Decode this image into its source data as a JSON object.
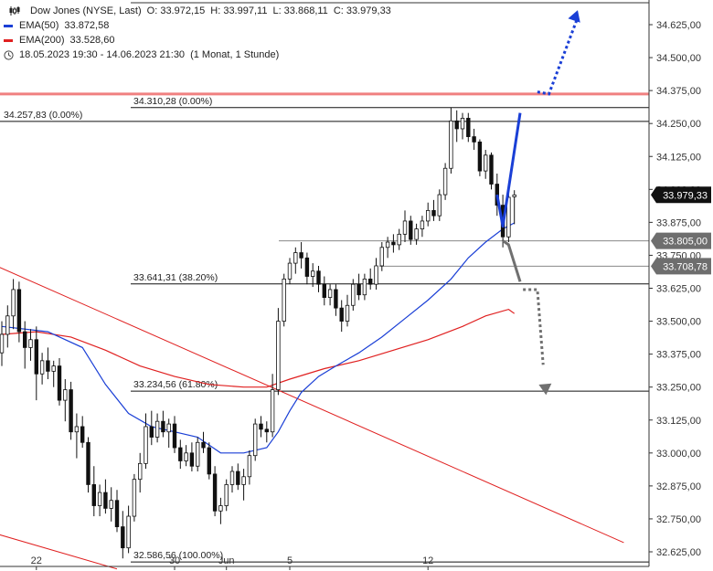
{
  "legend": {
    "title": "Dow Jones (NYSE, Last)",
    "open": "O: 33.972,15",
    "high": "H: 33.997,11",
    "low": "L: 33.868,11",
    "close": "C: 33.979,33",
    "ema50_label": "EMA(50)",
    "ema50_value": "33.872,58",
    "ema200_label": "EMA(200)",
    "ema200_value": "33.528,60",
    "range": "18.05.2023 19:30 - 14.06.2023 21:30",
    "interval": "(1 Monat, 1 Stunde)",
    "colors": {
      "ema50": "#1a3fd6",
      "ema200": "#e02020"
    },
    "icons": [
      "candlestick-icon",
      "clock-icon"
    ]
  },
  "chart_data": {
    "type": "candlestick",
    "y_min": 32600,
    "y_max": 34700,
    "y_ticks": [
      "34.625,00",
      "34.500,00",
      "34.375,00",
      "34.250,00",
      "34.125,00",
      "34.000,00",
      "33.875,00",
      "33.750,00",
      "33.625,00",
      "33.500,00",
      "33.375,00",
      "33.250,00",
      "33.125,00",
      "33.000,00",
      "32.875,00",
      "32.750,00",
      "32.625,00"
    ],
    "y_tick_values": [
      34625,
      34500,
      34375,
      34250,
      34125,
      34000,
      33875,
      33750,
      33625,
      33500,
      33375,
      33250,
      33125,
      33000,
      32875,
      32750,
      32625
    ],
    "x_labels": [
      {
        "label": "22",
        "index": 6
      },
      {
        "label": "30",
        "index": 30
      },
      {
        "label": "Jun",
        "index": 39
      },
      {
        "label": "5",
        "index": 50
      },
      {
        "label": "12",
        "index": 74
      }
    ],
    "candles": [
      {
        "o": 33380,
        "h": 33500,
        "l": 33330,
        "c": 33450
      },
      {
        "o": 33450,
        "h": 33560,
        "l": 33400,
        "c": 33520
      },
      {
        "o": 33520,
        "h": 33660,
        "l": 33470,
        "c": 33620
      },
      {
        "o": 33620,
        "h": 33650,
        "l": 33420,
        "c": 33460
      },
      {
        "o": 33460,
        "h": 33500,
        "l": 33320,
        "c": 33400
      },
      {
        "o": 33400,
        "h": 33470,
        "l": 33350,
        "c": 33430
      },
      {
        "o": 33430,
        "h": 33480,
        "l": 33200,
        "c": 33300
      },
      {
        "o": 33300,
        "h": 33380,
        "l": 33260,
        "c": 33350
      },
      {
        "o": 33350,
        "h": 33400,
        "l": 33280,
        "c": 33310
      },
      {
        "o": 33310,
        "h": 33350,
        "l": 33250,
        "c": 33330
      },
      {
        "o": 33330,
        "h": 33360,
        "l": 33180,
        "c": 33200
      },
      {
        "o": 33200,
        "h": 33280,
        "l": 33120,
        "c": 33240
      },
      {
        "o": 33240,
        "h": 33270,
        "l": 33050,
        "c": 33080
      },
      {
        "o": 33080,
        "h": 33150,
        "l": 32980,
        "c": 33100
      },
      {
        "o": 33100,
        "h": 33140,
        "l": 33020,
        "c": 33040
      },
      {
        "o": 33040,
        "h": 33060,
        "l": 32850,
        "c": 32880
      },
      {
        "o": 32880,
        "h": 32950,
        "l": 32760,
        "c": 32800
      },
      {
        "o": 32800,
        "h": 32880,
        "l": 32760,
        "c": 32850
      },
      {
        "o": 32850,
        "h": 32900,
        "l": 32770,
        "c": 32790
      },
      {
        "o": 32790,
        "h": 32870,
        "l": 32740,
        "c": 32820
      },
      {
        "o": 32820,
        "h": 32860,
        "l": 32700,
        "c": 32720
      },
      {
        "o": 32720,
        "h": 32780,
        "l": 32600,
        "c": 32640
      },
      {
        "o": 32640,
        "h": 32800,
        "l": 32620,
        "c": 32760
      },
      {
        "o": 32760,
        "h": 32920,
        "l": 32740,
        "c": 32900
      },
      {
        "o": 32900,
        "h": 33000,
        "l": 32850,
        "c": 32960
      },
      {
        "o": 32960,
        "h": 33150,
        "l": 32940,
        "c": 33100
      },
      {
        "o": 33100,
        "h": 33160,
        "l": 33030,
        "c": 33060
      },
      {
        "o": 33060,
        "h": 33150,
        "l": 33040,
        "c": 33120
      },
      {
        "o": 33120,
        "h": 33160,
        "l": 33060,
        "c": 33080
      },
      {
        "o": 33080,
        "h": 33130,
        "l": 33020,
        "c": 33110
      },
      {
        "o": 33110,
        "h": 33140,
        "l": 33000,
        "c": 33020
      },
      {
        "o": 33020,
        "h": 33050,
        "l": 32940,
        "c": 32970
      },
      {
        "o": 32970,
        "h": 33030,
        "l": 32950,
        "c": 33000
      },
      {
        "o": 33000,
        "h": 33040,
        "l": 32930,
        "c": 32950
      },
      {
        "o": 32950,
        "h": 33060,
        "l": 32930,
        "c": 33040
      },
      {
        "o": 33040,
        "h": 33080,
        "l": 33000,
        "c": 33020
      },
      {
        "o": 33020,
        "h": 33040,
        "l": 32900,
        "c": 32920
      },
      {
        "o": 32920,
        "h": 32950,
        "l": 32760,
        "c": 32780
      },
      {
        "o": 32780,
        "h": 32830,
        "l": 32730,
        "c": 32800
      },
      {
        "o": 32800,
        "h": 32900,
        "l": 32780,
        "c": 32880
      },
      {
        "o": 32880,
        "h": 32950,
        "l": 32850,
        "c": 32930
      },
      {
        "o": 32930,
        "h": 32960,
        "l": 32860,
        "c": 32880
      },
      {
        "o": 32880,
        "h": 32940,
        "l": 32820,
        "c": 32910
      },
      {
        "o": 32910,
        "h": 33010,
        "l": 32880,
        "c": 32990
      },
      {
        "o": 32990,
        "h": 33130,
        "l": 32970,
        "c": 33110
      },
      {
        "o": 33110,
        "h": 33140,
        "l": 33060,
        "c": 33090
      },
      {
        "o": 33090,
        "h": 33120,
        "l": 33040,
        "c": 33080
      },
      {
        "o": 33080,
        "h": 33300,
        "l": 33060,
        "c": 33240
      },
      {
        "o": 33240,
        "h": 33550,
        "l": 33220,
        "c": 33500
      },
      {
        "o": 33500,
        "h": 33680,
        "l": 33480,
        "c": 33660
      },
      {
        "o": 33660,
        "h": 33740,
        "l": 33640,
        "c": 33720
      },
      {
        "o": 33720,
        "h": 33780,
        "l": 33680,
        "c": 33760
      },
      {
        "o": 33760,
        "h": 33800,
        "l": 33700,
        "c": 33740
      },
      {
        "o": 33740,
        "h": 33760,
        "l": 33640,
        "c": 33670
      },
      {
        "o": 33670,
        "h": 33720,
        "l": 33630,
        "c": 33690
      },
      {
        "o": 33690,
        "h": 33710,
        "l": 33610,
        "c": 33640
      },
      {
        "o": 33640,
        "h": 33670,
        "l": 33560,
        "c": 33590
      },
      {
        "o": 33590,
        "h": 33640,
        "l": 33560,
        "c": 33620
      },
      {
        "o": 33620,
        "h": 33640,
        "l": 33520,
        "c": 33550
      },
      {
        "o": 33550,
        "h": 33580,
        "l": 33460,
        "c": 33500
      },
      {
        "o": 33500,
        "h": 33600,
        "l": 33480,
        "c": 33560
      },
      {
        "o": 33560,
        "h": 33660,
        "l": 33540,
        "c": 33640
      },
      {
        "o": 33640,
        "h": 33680,
        "l": 33580,
        "c": 33600
      },
      {
        "o": 33600,
        "h": 33680,
        "l": 33580,
        "c": 33660
      },
      {
        "o": 33660,
        "h": 33700,
        "l": 33620,
        "c": 33640
      },
      {
        "o": 33640,
        "h": 33740,
        "l": 33620,
        "c": 33710
      },
      {
        "o": 33710,
        "h": 33800,
        "l": 33690,
        "c": 33780
      },
      {
        "o": 33780,
        "h": 33820,
        "l": 33740,
        "c": 33800
      },
      {
        "o": 33800,
        "h": 33830,
        "l": 33760,
        "c": 33790
      },
      {
        "o": 33790,
        "h": 33850,
        "l": 33770,
        "c": 33830
      },
      {
        "o": 33830,
        "h": 33920,
        "l": 33800,
        "c": 33880
      },
      {
        "o": 33880,
        "h": 33900,
        "l": 33790,
        "c": 33810
      },
      {
        "o": 33810,
        "h": 33870,
        "l": 33790,
        "c": 33850
      },
      {
        "o": 33850,
        "h": 33900,
        "l": 33820,
        "c": 33880
      },
      {
        "o": 33880,
        "h": 33950,
        "l": 33860,
        "c": 33920
      },
      {
        "o": 33920,
        "h": 33960,
        "l": 33880,
        "c": 33900
      },
      {
        "o": 33900,
        "h": 34000,
        "l": 33880,
        "c": 33980
      },
      {
        "o": 33980,
        "h": 34100,
        "l": 33960,
        "c": 34080
      },
      {
        "o": 34080,
        "h": 34310,
        "l": 34060,
        "c": 34260
      },
      {
        "o": 34260,
        "h": 34300,
        "l": 34180,
        "c": 34230
      },
      {
        "o": 34230,
        "h": 34290,
        "l": 34190,
        "c": 34270
      },
      {
        "o": 34270,
        "h": 34290,
        "l": 34180,
        "c": 34200
      },
      {
        "o": 34200,
        "h": 34230,
        "l": 34150,
        "c": 34180
      },
      {
        "o": 34180,
        "h": 34190,
        "l": 34050,
        "c": 34070
      },
      {
        "o": 34070,
        "h": 34150,
        "l": 34040,
        "c": 34130
      },
      {
        "o": 34130,
        "h": 34140,
        "l": 34000,
        "c": 34020
      },
      {
        "o": 34020,
        "h": 34060,
        "l": 33900,
        "c": 33940
      },
      {
        "o": 33940,
        "h": 33980,
        "l": 33780,
        "c": 33820
      },
      {
        "o": 33820,
        "h": 33990,
        "l": 33800,
        "c": 33970
      },
      {
        "o": 33972,
        "h": 33997,
        "l": 33868,
        "c": 33979
      }
    ],
    "ema50": [
      [
        0,
        33480
      ],
      [
        8,
        33460
      ],
      [
        14,
        33400
      ],
      [
        18,
        33260
      ],
      [
        22,
        33150
      ],
      [
        26,
        33100
      ],
      [
        30,
        33080
      ],
      [
        34,
        33060
      ],
      [
        38,
        33000
      ],
      [
        42,
        33000
      ],
      [
        46,
        33020
      ],
      [
        48,
        33080
      ],
      [
        50,
        33160
      ],
      [
        52,
        33230
      ],
      [
        55,
        33290
      ],
      [
        58,
        33330
      ],
      [
        62,
        33380
      ],
      [
        66,
        33440
      ],
      [
        70,
        33510
      ],
      [
        74,
        33580
      ],
      [
        78,
        33660
      ],
      [
        81,
        33740
      ],
      [
        84,
        33800
      ],
      [
        87,
        33850
      ],
      [
        89,
        33873
      ]
    ],
    "ema200": [
      [
        0,
        33450
      ],
      [
        6,
        33460
      ],
      [
        12,
        33440
      ],
      [
        18,
        33390
      ],
      [
        24,
        33330
      ],
      [
        30,
        33290
      ],
      [
        36,
        33260
      ],
      [
        42,
        33250
      ],
      [
        46,
        33250
      ],
      [
        50,
        33280
      ],
      [
        56,
        33320
      ],
      [
        62,
        33350
      ],
      [
        68,
        33390
      ],
      [
        74,
        33430
      ],
      [
        80,
        33480
      ],
      [
        84,
        33520
      ],
      [
        88,
        33545
      ],
      [
        89,
        33529
      ]
    ],
    "horizontal_levels": [
      {
        "value": 34362,
        "color": "#f08080",
        "width": 3,
        "label": ""
      },
      {
        "value": 34310.28,
        "color": "#111111",
        "width": 1,
        "label": "34.310,28 (0.00%)"
      },
      {
        "value": 34257.83,
        "color": "#111111",
        "width": 1,
        "label": "34.257,83 (0.00%)"
      },
      {
        "value": 33805,
        "color": "#888888",
        "width": 1,
        "label": ""
      },
      {
        "value": 33708.78,
        "color": "#888888",
        "width": 1,
        "label": ""
      },
      {
        "value": 33641.31,
        "color": "#111111",
        "width": 1,
        "label": "33.641,31 (38.20%)"
      },
      {
        "value": 33234.56,
        "color": "#111111",
        "width": 1,
        "label": "33.234,56 (61.80%)"
      },
      {
        "value": 32586.56,
        "color": "#111111",
        "width": 1,
        "label": "32.586,56 (100.00%)"
      }
    ],
    "price_tags": [
      {
        "value": 33979.33,
        "text": "33.979,33",
        "color": "#111111"
      },
      {
        "value": 33805.0,
        "text": "33.805,00",
        "color": "#6e6e6e"
      },
      {
        "value": 33708.78,
        "text": "33.708,78",
        "color": "#6e6e6e"
      }
    ],
    "trendlines": [
      {
        "from": [
          -2,
          33720
        ],
        "to": [
          108,
          32660
        ],
        "color": "#e02020"
      },
      {
        "from": [
          -2,
          32700
        ],
        "to": [
          20,
          32560
        ],
        "color": "#e02020"
      }
    ],
    "scenario_up": {
      "color": "#1a3fd6",
      "points": [
        [
          86,
          33980
        ],
        [
          87,
          33860
        ],
        [
          90,
          34290
        ],
        [
          93,
          34370
        ],
        [
          95,
          34362
        ],
        [
          100,
          34680
        ]
      ]
    },
    "scenario_down": {
      "color": "#707070",
      "points": [
        [
          87,
          33805
        ],
        [
          88,
          33790
        ],
        [
          90,
          33650
        ],
        [
          90.5,
          33620
        ],
        [
          93,
          33620
        ],
        [
          94,
          33300
        ],
        [
          94.5,
          33220
        ]
      ]
    }
  }
}
